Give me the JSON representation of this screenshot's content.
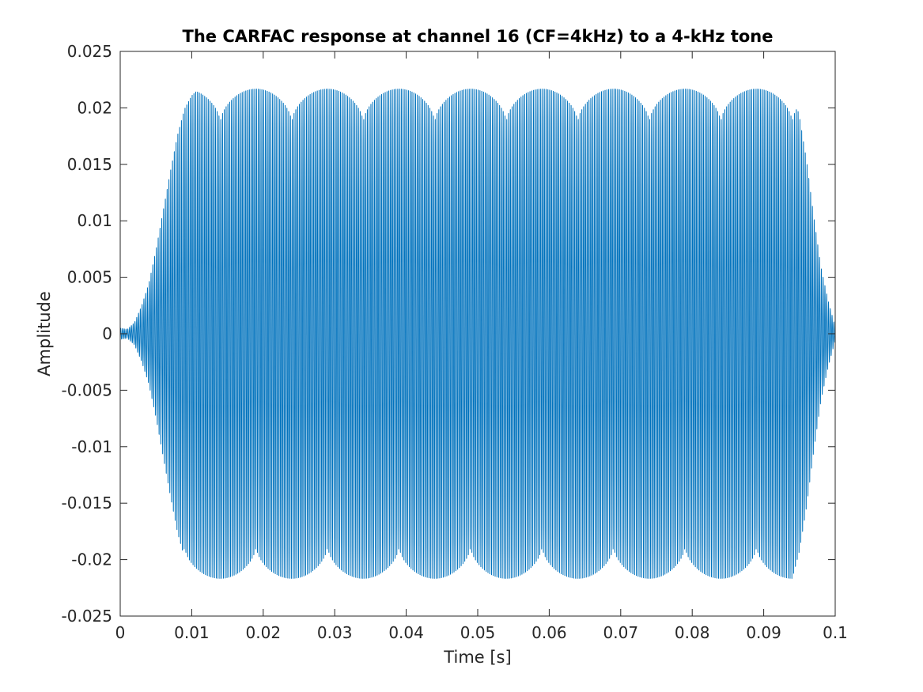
{
  "chart_data": {
    "type": "line",
    "title": "The CARFAC response at channel 16 (CF=4kHz) to a 4-kHz tone",
    "xlabel": "Time [s]",
    "ylabel": "Amplitude",
    "xlim": [
      0,
      0.1
    ],
    "ylim": [
      -0.025,
      0.025
    ],
    "x_ticks": [
      0,
      0.01,
      0.02,
      0.03,
      0.04,
      0.05,
      0.06,
      0.07,
      0.08,
      0.09,
      0.1
    ],
    "x_tick_labels": [
      "0",
      "0.01",
      "0.02",
      "0.03",
      "0.04",
      "0.05",
      "0.06",
      "0.07",
      "0.08",
      "0.09",
      "0.1"
    ],
    "y_ticks": [
      -0.025,
      -0.02,
      -0.015,
      -0.01,
      -0.005,
      0,
      0.005,
      0.01,
      0.015,
      0.02,
      0.025
    ],
    "y_tick_labels": [
      "-0.025",
      "-0.02",
      "-0.015",
      "-0.01",
      "-0.005",
      "0",
      "0.005",
      "0.01",
      "0.015",
      "0.02",
      "0.025"
    ],
    "grid": false,
    "series_color": "#0072BD",
    "signal": {
      "frequency_hz": 4000,
      "envelope": {
        "t": [
          0,
          0.001,
          0.002,
          0.003,
          0.004,
          0.005,
          0.006,
          0.007,
          0.008,
          0.009,
          0.01,
          0.011,
          0.094,
          0.095,
          0.096,
          0.097,
          0.098,
          0.099,
          0.1
        ],
        "amp": [
          0.0005,
          0.0004,
          0.001,
          0.0025,
          0.0045,
          0.0075,
          0.011,
          0.0145,
          0.0178,
          0.0202,
          0.0214,
          0.022,
          0.022,
          0.0195,
          0.0155,
          0.0105,
          0.006,
          0.003,
          0.0006
        ]
      },
      "beat_period_s": 0.01,
      "positive_peak_min": 0.0188,
      "positive_peak_max": 0.022,
      "positive_dip_times_s": [
        0.024,
        0.034,
        0.044,
        0.054,
        0.064,
        0.074,
        0.084
      ],
      "negative_peak_min": -0.022,
      "negative_peak_max": -0.0189,
      "negative_dip_times_s": [
        0.019,
        0.029,
        0.039,
        0.049,
        0.059,
        0.069,
        0.079,
        0.089
      ]
    }
  }
}
